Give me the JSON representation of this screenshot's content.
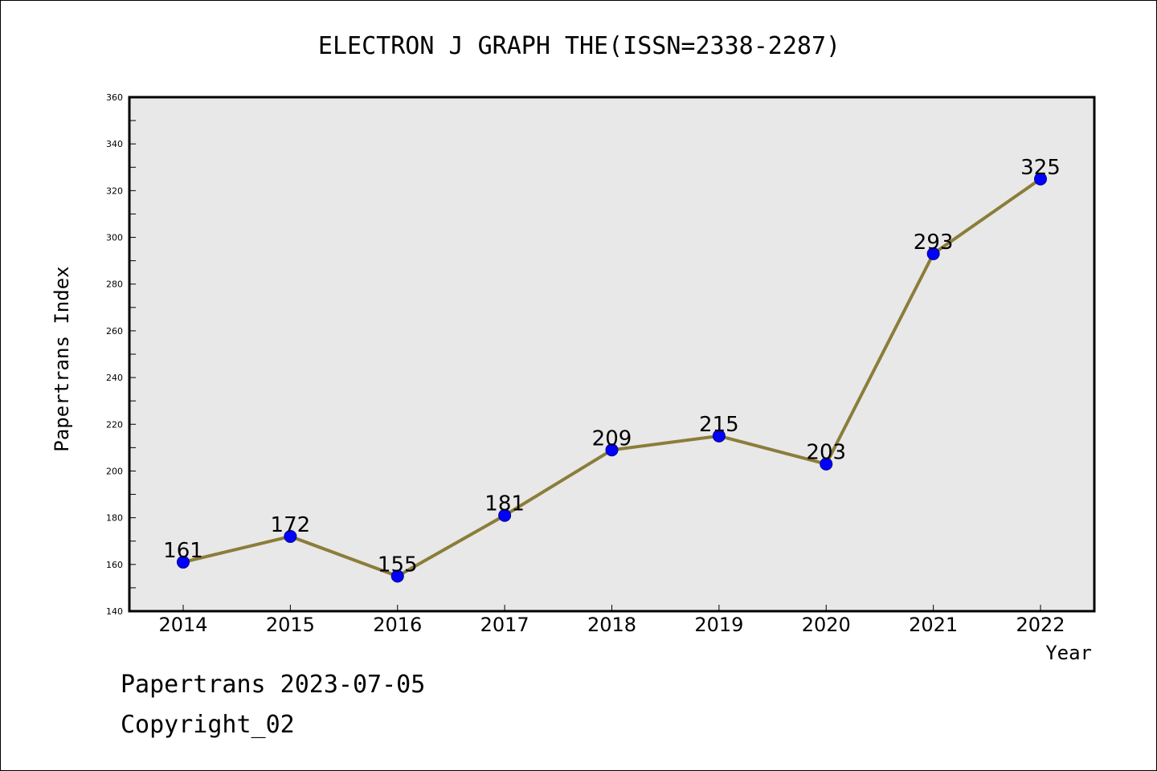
{
  "chart_data": {
    "type": "line",
    "title": "ELECTRON J GRAPH THE(ISSN=2338-2287)",
    "xlabel": "Year",
    "ylabel": "Papertrans Index",
    "categories": [
      "2014",
      "2015",
      "2016",
      "2017",
      "2018",
      "2019",
      "2020",
      "2021",
      "2022"
    ],
    "series": [
      {
        "values": [
          161,
          172,
          155,
          181,
          209,
          215,
          203,
          293,
          325
        ],
        "line_color": "#8b7d3a",
        "marker_color": "#0000ff"
      }
    ],
    "ylim": [
      140,
      360
    ],
    "yticks": [
      140,
      160,
      180,
      200,
      220,
      240,
      260,
      280,
      300,
      320,
      340,
      360
    ],
    "grid": false,
    "legend": "none",
    "plot_background": "#e8e8e8"
  },
  "footer": {
    "date_line": "Papertrans 2023-07-05",
    "copyright_line": "Copyright_02"
  }
}
